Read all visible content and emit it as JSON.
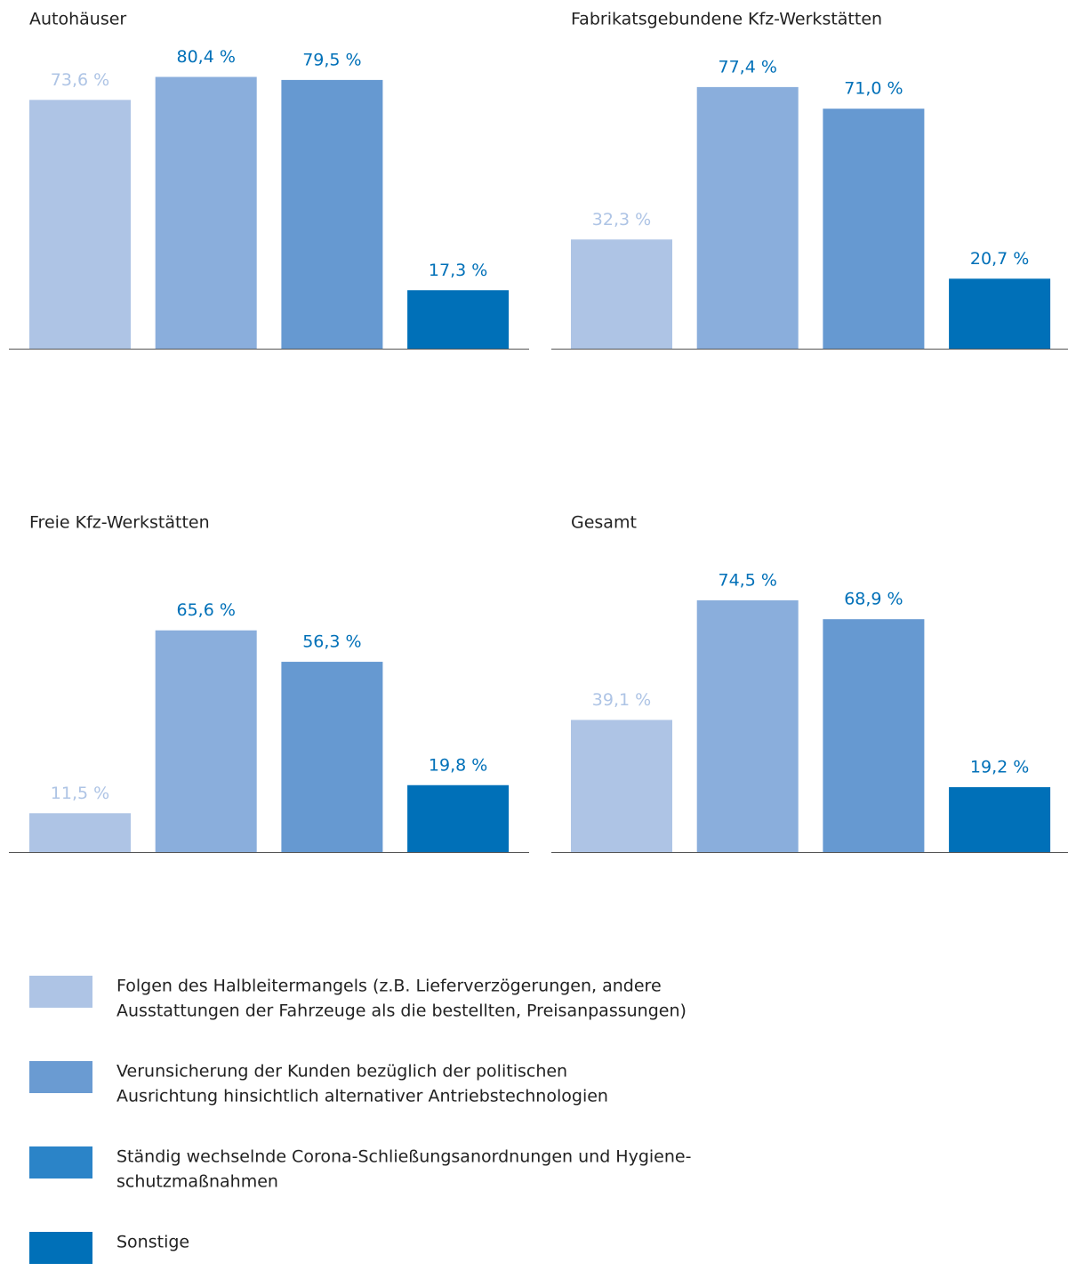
{
  "chart_data": [
    {
      "type": "bar",
      "title": "Autohäuser",
      "values": [
        73.6,
        80.4,
        79.5,
        17.3
      ],
      "value_labels": [
        "73,6 %",
        "80,4 %",
        "79,5 %",
        "17,3 %"
      ],
      "colors": [
        "#aec4e5",
        "#8aaedc",
        "#6699d1",
        "#0070b8"
      ],
      "label_colors": [
        "#aec4e5",
        "#0070b8",
        "#0070b8",
        "#0070b8"
      ]
    },
    {
      "type": "bar",
      "title": "Fabrikatsgebundene Kfz-Werkstätten",
      "values": [
        32.3,
        77.4,
        71.0,
        20.7
      ],
      "value_labels": [
        "32,3 %",
        "77,4 %",
        "71,0 %",
        "20,7 %"
      ],
      "colors": [
        "#aec4e5",
        "#8aaedc",
        "#6699d1",
        "#0070b8"
      ],
      "label_colors": [
        "#aec4e5",
        "#0070b8",
        "#0070b8",
        "#0070b8"
      ]
    },
    {
      "type": "bar",
      "title": "Freie Kfz-Werkstätten",
      "values": [
        11.5,
        65.6,
        56.3,
        19.8
      ],
      "value_labels": [
        "11,5 %",
        "65,6 %",
        "56,3 %",
        "19,8 %"
      ],
      "colors": [
        "#aec4e5",
        "#8aaedc",
        "#6699d1",
        "#0070b8"
      ],
      "label_colors": [
        "#aec4e5",
        "#0070b8",
        "#0070b8",
        "#0070b8"
      ]
    },
    {
      "type": "bar",
      "title": "Gesamt",
      "values": [
        39.1,
        74.5,
        68.9,
        19.2
      ],
      "value_labels": [
        "39,1 %",
        "74,5 %",
        "68,9 %",
        "19,2 %"
      ],
      "colors": [
        "#aec4e5",
        "#8aaedc",
        "#6699d1",
        "#0070b8"
      ],
      "label_colors": [
        "#aec4e5",
        "#0070b8",
        "#0070b8",
        "#0070b8"
      ]
    }
  ],
  "legend": [
    {
      "label": [
        "Folgen des Halbleitermangels (z.B. Lieferverzögerungen, andere",
        "Ausstattungen der Fahrzeuge als die bestellten, Preisanpassungen)"
      ],
      "color": "#aec4e5"
    },
    {
      "label": [
        "Verunsicherung der Kunden bezüglich der politischen",
        "Ausrichtung hinsichtlich alternativer Antriebstechnologien"
      ],
      "color": "#6a9bd2"
    },
    {
      "label": [
        "Ständig wechselnde Corona-Schließungsanordnungen und Hygiene-",
        "schutzmaßnahmen"
      ],
      "color": "#2b84c8"
    },
    {
      "label": [
        "Sonstige"
      ],
      "color": "#0070b8"
    }
  ]
}
